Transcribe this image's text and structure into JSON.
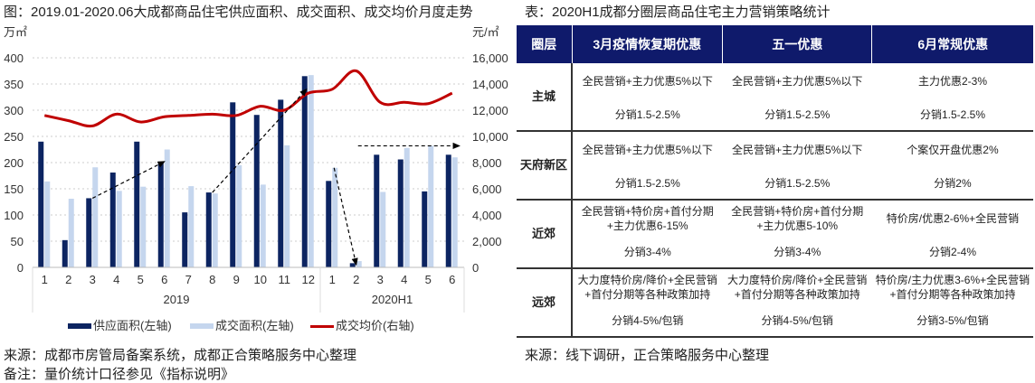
{
  "left": {
    "title": "图：2019.01-2020.06大成都商品住宅供应面积、成交面积、成交均价月度走势",
    "source": "来源：成都市房管局备案系统，成都正合策略服务中心整理",
    "remark": "备注：量价统计口径参见《指标说明》"
  },
  "chart_data": {
    "type": "bar",
    "title": "2019.01-2020.06大成都商品住宅供应面积、成交面积、成交均价月度走势",
    "categories": [
      "1",
      "2",
      "3",
      "4",
      "5",
      "6",
      "7",
      "8",
      "9",
      "10",
      "11",
      "12",
      "1",
      "2",
      "3",
      "4",
      "5",
      "6"
    ],
    "groups": [
      {
        "label": "2019",
        "start": 0,
        "end": 11
      },
      {
        "label": "2020H1",
        "start": 12,
        "end": 17
      }
    ],
    "y_left": {
      "label": "万㎡",
      "ticks": [
        0,
        50,
        100,
        150,
        200,
        250,
        300,
        350,
        400
      ],
      "lim": [
        0,
        400
      ]
    },
    "y_right": {
      "label": "元/㎡",
      "ticks": [
        "0",
        "2,000",
        "4,000",
        "6,000",
        "8,000",
        "10,000",
        "12,000",
        "14,000",
        "16,000"
      ],
      "lim": [
        0,
        16000
      ]
    },
    "series": [
      {
        "name": "供应面积(左轴)",
        "type": "bar",
        "axis": "left",
        "color": "#0c2461",
        "values": [
          240,
          52,
          132,
          181,
          240,
          202,
          105,
          143,
          315,
          291,
          320,
          365,
          165,
          8,
          215,
          206,
          145,
          215
        ]
      },
      {
        "name": "成交面积(左轴)",
        "type": "bar",
        "axis": "left",
        "color": "#c5d6ee",
        "values": [
          164,
          131,
          191,
          146,
          154,
          225,
          155,
          141,
          195,
          158,
          233,
          367,
          190,
          12,
          144,
          228,
          232,
          210
        ]
      },
      {
        "name": "成交均价(右轴)",
        "type": "line",
        "axis": "right",
        "color": "#c00000",
        "values": [
          11600,
          11200,
          10800,
          11700,
          11100,
          11500,
          11600,
          11700,
          11600,
          12300,
          12000,
          13300,
          13600,
          15000,
          12600,
          12600,
          12500,
          13300
        ]
      }
    ],
    "grid": true,
    "legend_position": "bottom"
  },
  "right": {
    "title": "表：2020H1成都分圈层商品住宅主力营销策略统计",
    "headers": [
      "圈层",
      "3月疫情恢复期优惠",
      "五一优惠",
      "6月常规优惠"
    ],
    "rows": [
      {
        "zone": "主城",
        "cells": [
          [
            "全民营销+主力优惠5%以下",
            "分销1.5-2.5%"
          ],
          [
            "全民营销+主力优惠5%以下",
            "分销1.5-2.5%"
          ],
          [
            "主力优惠2-3%",
            "分销1.5-2.5%"
          ]
        ]
      },
      {
        "zone": "天府新区",
        "cells": [
          [
            "全民营销+主力优惠5%以下",
            "分销1.5-2.5%"
          ],
          [
            "全民营销+主力优惠5%以下",
            "分销1.5-2.5%"
          ],
          [
            "个案仅开盘优惠2%",
            "分销2%"
          ]
        ]
      },
      {
        "zone": "近郊",
        "cells": [
          [
            "全民营销+特价房+首付分期+主力优惠6-15%",
            "分销3-4%"
          ],
          [
            "全民营销+特价房+首付分期+主力优惠5-10%",
            "分销3-4%"
          ],
          [
            "特价房/优惠2-6%+全民营销",
            "分销2-4%"
          ]
        ]
      },
      {
        "zone": "远郊",
        "cells": [
          [
            "大力度特价房/降价+全民营销+首付分期等各种政策加持",
            "分销4-5%/包销"
          ],
          [
            "大力度特价房/降价+全民营销+首付分期等各种政策加持",
            "分销4-5%/包销"
          ],
          [
            "特价房/主力优惠3-6%+全民营销+首付分期等各种政策加持",
            "分销3-5%/包销"
          ]
        ]
      }
    ],
    "source": "来源：线下调研，正合策略服务中心整理"
  }
}
